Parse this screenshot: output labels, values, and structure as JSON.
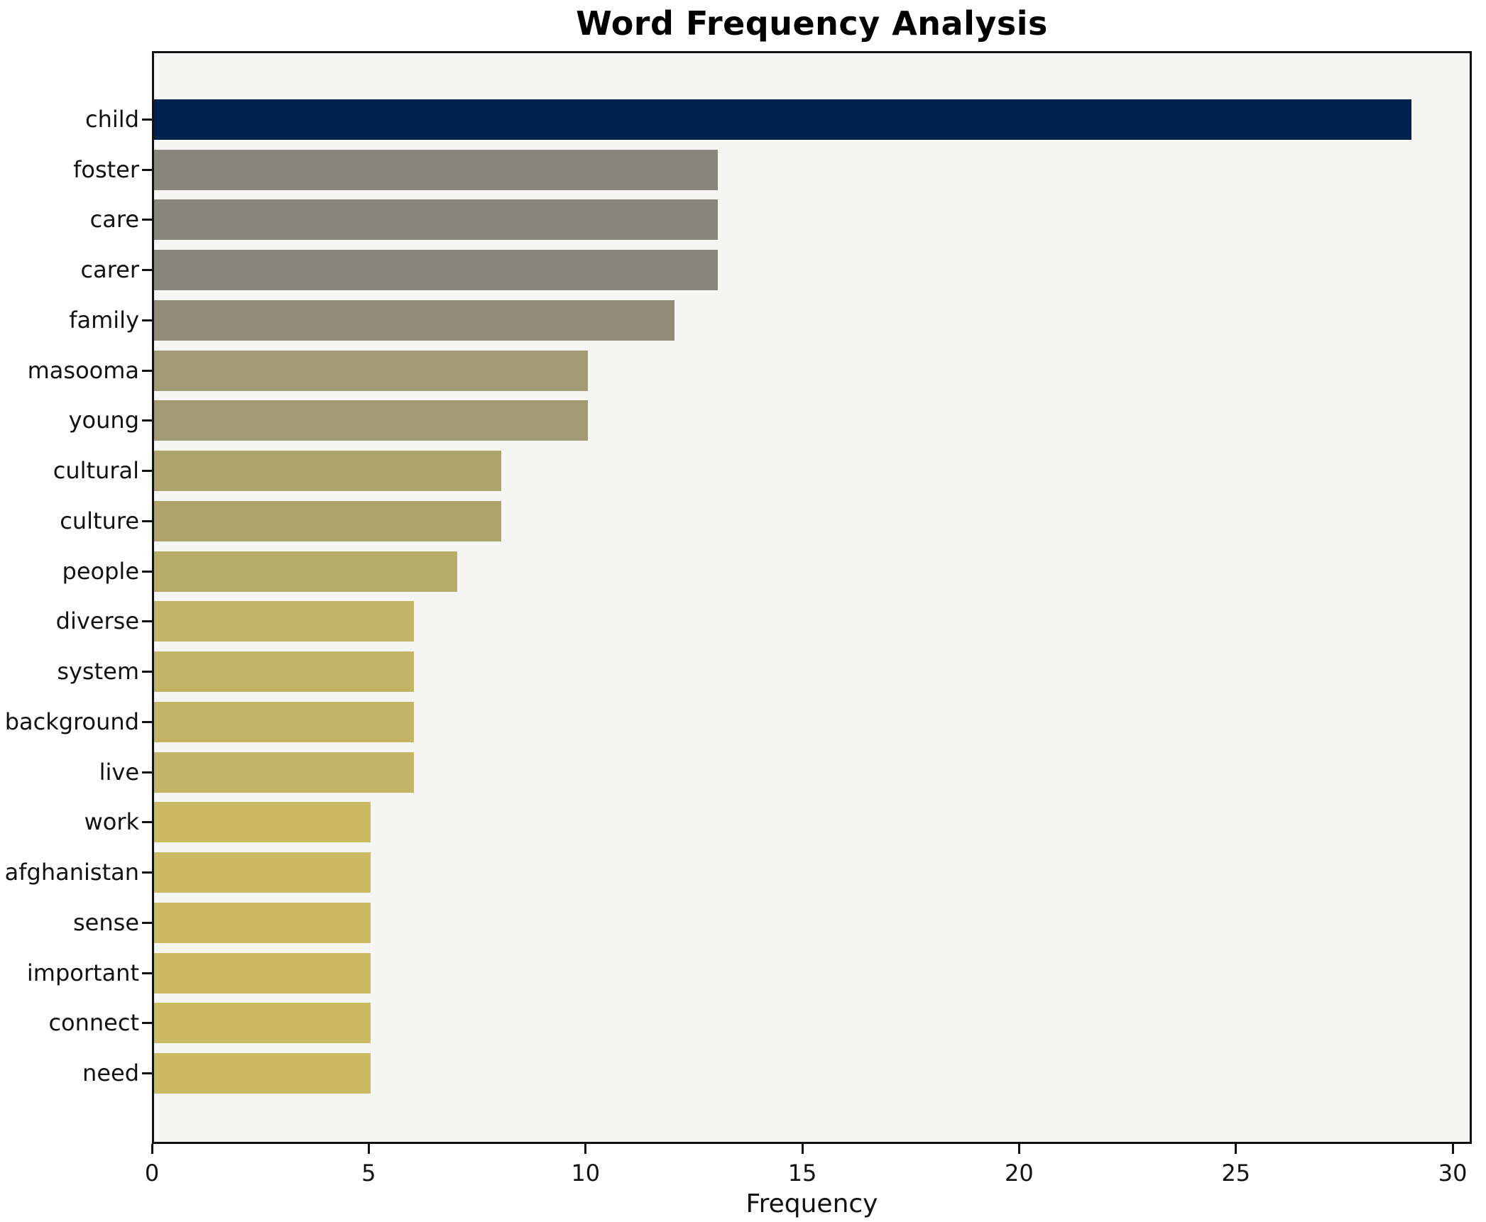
{
  "chart_data": {
    "type": "bar",
    "orientation": "horizontal",
    "title": "Word Frequency Analysis",
    "xlabel": "Frequency",
    "ylabel": "",
    "xlim": [
      0,
      30
    ],
    "xticks": [
      0,
      5,
      10,
      15,
      20,
      25,
      30
    ],
    "grid": false,
    "legend": "none",
    "plot_background": "#f5f5f3",
    "figure_background": "#ffffff",
    "spine_color": "#111111",
    "text_color": "#111111",
    "categories": [
      "child",
      "foster",
      "care",
      "carer",
      "family",
      "masooma",
      "young",
      "cultural",
      "culture",
      "people",
      "diverse",
      "system",
      "background",
      "live",
      "work",
      "afghanistan",
      "sense",
      "important",
      "connect",
      "need"
    ],
    "values": [
      29,
      13,
      13,
      13,
      12,
      10,
      10,
      8,
      8,
      7,
      6,
      6,
      6,
      6,
      5,
      5,
      5,
      5,
      5,
      5
    ],
    "bar_colors": [
      "#00224e",
      "#88857a",
      "#88857a",
      "#88857a",
      "#918c78",
      "#a29a73",
      "#a29a73",
      "#aea46b",
      "#aea46b",
      "#b8ac68",
      "#c4b465",
      "#c4b465",
      "#c4b465",
      "#c4b465",
      "#ccba62",
      "#ccba62",
      "#ccba62",
      "#ccba62",
      "#ccba62",
      "#ccba62"
    ]
  }
}
